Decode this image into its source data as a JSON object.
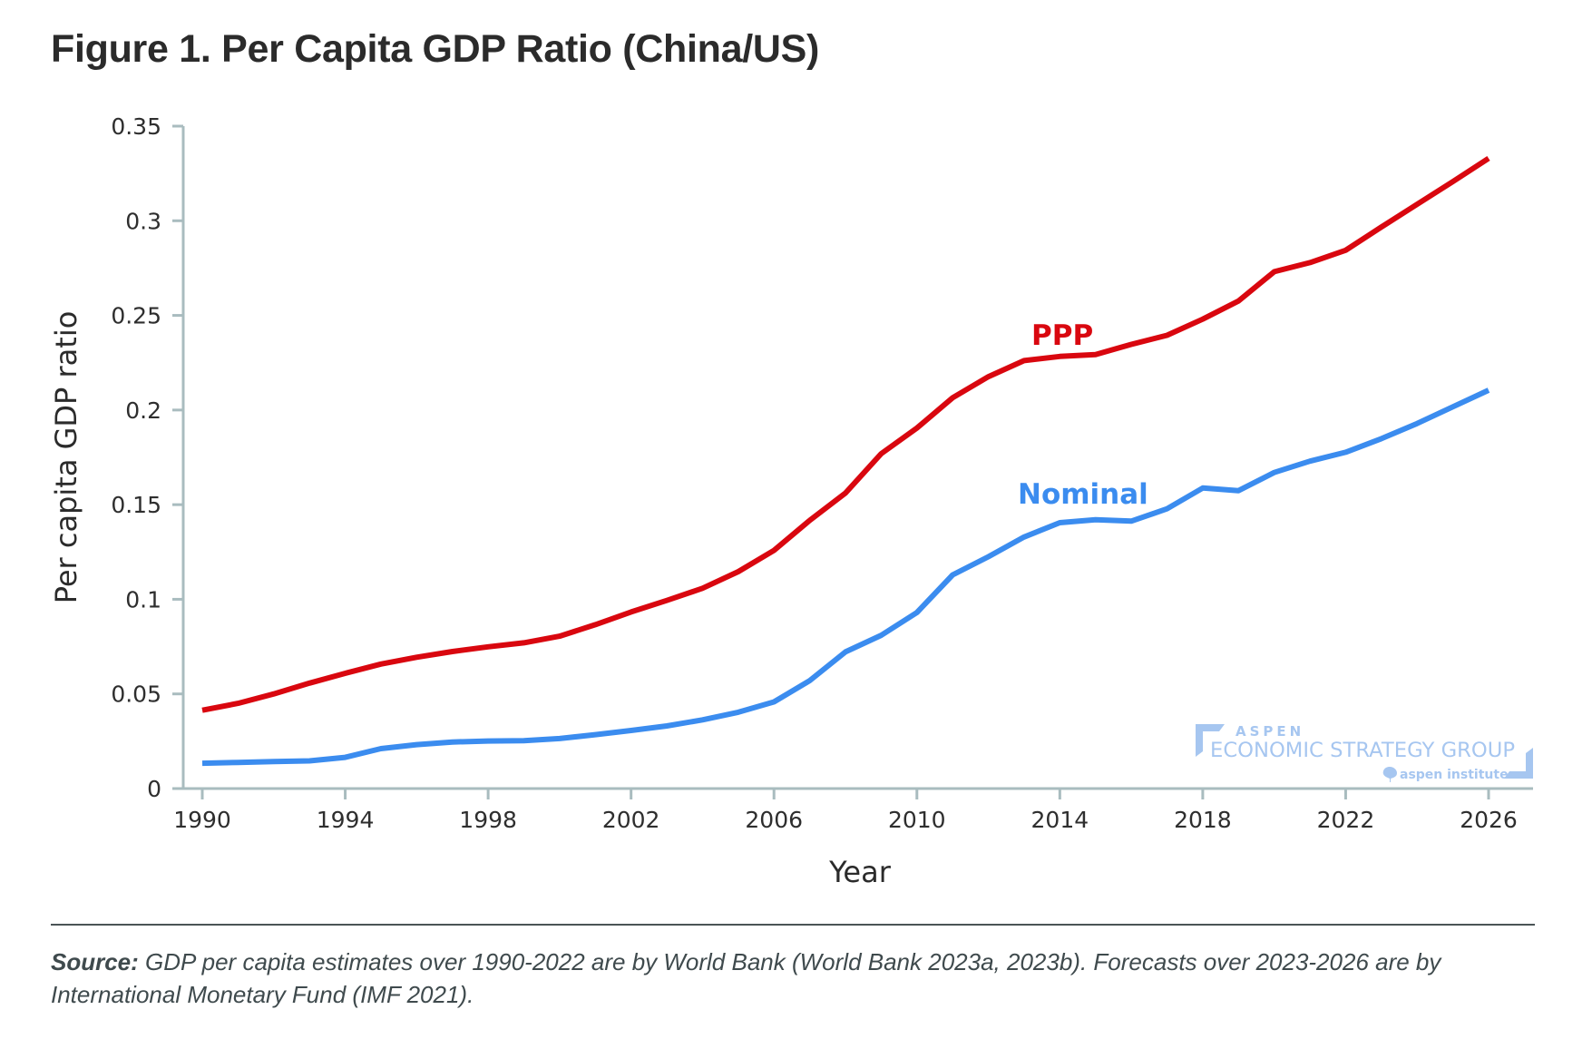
{
  "title": "Figure 1. Per Capita GDP Ratio (China/US)",
  "source": {
    "label": "Source:",
    "text": " GDP per capita estimates over 1990-2022 are by World Bank (World Bank 2023a, 2023b). Forecasts over 2023-2026 are by International Monetary Fund (IMF 2021)."
  },
  "logo": {
    "line1": "ASPEN",
    "line2": "ECONOMIC STRATEGY GROUP",
    "line3": "aspen institute",
    "color": "#a6c6f0"
  },
  "chart_data": {
    "type": "line",
    "title": "Figure 1. Per Capita GDP Ratio (China/US)",
    "xlabel": "Year",
    "ylabel": "Per capita GDP ratio",
    "xlim": [
      1990,
      2026
    ],
    "ylim": [
      0,
      0.35
    ],
    "grid": false,
    "legend": "inline labels",
    "x_ticks": [
      "1990",
      "1994",
      "1998",
      "2002",
      "2006",
      "2010",
      "2014",
      "2018",
      "2022",
      "2026"
    ],
    "y_ticks": [
      "0",
      "0.05",
      "0.1",
      "0.15",
      "0.2",
      "0.25",
      "0.3",
      "0.35"
    ],
    "x": [
      1990,
      1991,
      1992,
      1993,
      1994,
      1995,
      1996,
      1997,
      1998,
      1999,
      2000,
      2001,
      2002,
      2003,
      2004,
      2005,
      2006,
      2007,
      2008,
      2009,
      2010,
      2011,
      2012,
      2013,
      2014,
      2015,
      2016,
      2017,
      2018,
      2019,
      2020,
      2021,
      2022,
      2023,
      2024,
      2025,
      2026
    ],
    "series": [
      {
        "name": "PPP",
        "color": "#d9070f",
        "values": [
          0.0414,
          0.045,
          0.05,
          0.0557,
          0.0609,
          0.0658,
          0.0694,
          0.0724,
          0.0749,
          0.077,
          0.0805,
          0.0866,
          0.0933,
          0.0994,
          0.1058,
          0.1146,
          0.1258,
          0.1417,
          0.1561,
          0.1769,
          0.1905,
          0.2065,
          0.2176,
          0.2261,
          0.2283,
          0.2293,
          0.2347,
          0.2395,
          0.248,
          0.2576,
          0.2731,
          0.2779,
          0.2844,
          0.2967,
          0.3087,
          0.3207,
          0.333
        ]
      },
      {
        "name": "Nominal",
        "color": "#3b8cef",
        "values": [
          0.0134,
          0.0138,
          0.0143,
          0.0146,
          0.0165,
          0.0211,
          0.0232,
          0.0246,
          0.0251,
          0.0253,
          0.0264,
          0.0285,
          0.0307,
          0.0331,
          0.0363,
          0.0403,
          0.0458,
          0.057,
          0.0722,
          0.081,
          0.093,
          0.1129,
          0.1225,
          0.1329,
          0.1405,
          0.142,
          0.1413,
          0.1478,
          0.1588,
          0.1574,
          0.167,
          0.173,
          0.1777,
          0.1849,
          0.1929,
          0.2017,
          0.2105
        ]
      }
    ]
  }
}
